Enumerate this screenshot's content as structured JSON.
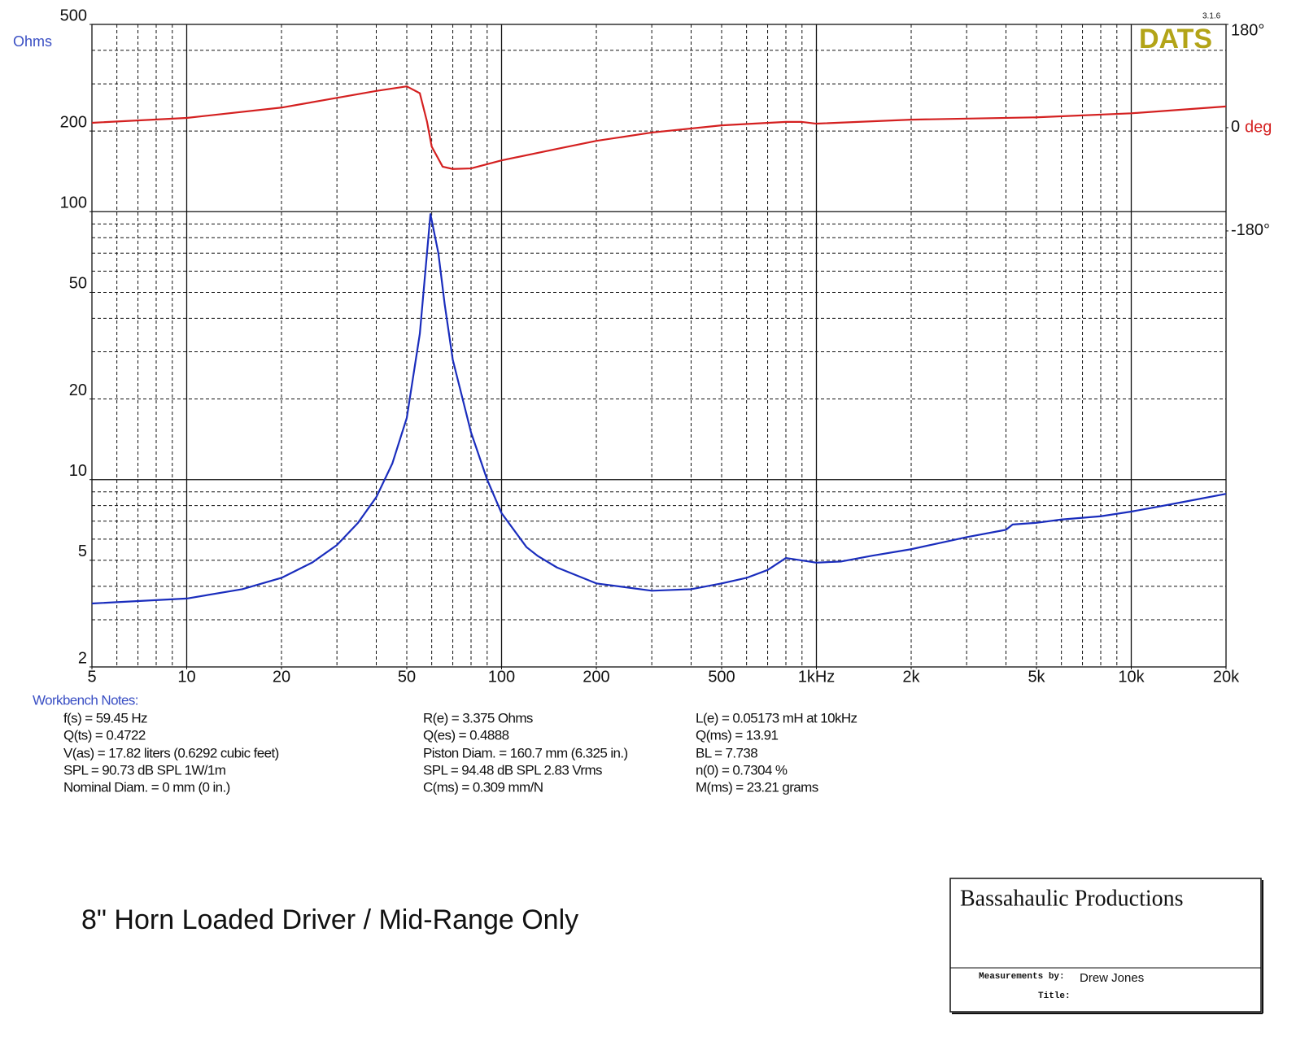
{
  "chart_data": {
    "type": "line",
    "y_label": "Ohms",
    "y2_label": "deg",
    "logo": "DATS",
    "version": "3.1.6",
    "xlog": true,
    "ylog": true,
    "xlim": [
      5,
      20000
    ],
    "ylim": [
      2,
      500
    ],
    "y2lim": [
      -940,
      180
    ],
    "xticks": [
      5,
      10,
      20,
      50,
      100,
      200,
      500,
      {
        "value": 1000,
        "label": "1kHz"
      },
      {
        "value": 2000,
        "label": "2k"
      },
      {
        "value": 5000,
        "label": "5k"
      },
      {
        "value": 10000,
        "label": "10k"
      },
      {
        "value": 20000,
        "label": "20k"
      }
    ],
    "yticks": [
      2,
      5,
      10,
      20,
      50,
      100,
      200,
      500
    ],
    "y2ticks": [
      {
        "value": 180,
        "label": "180°"
      },
      0,
      {
        "value": -180,
        "label": "-180°"
      }
    ],
    "x_grid": [
      5,
      6,
      7,
      8,
      9,
      10,
      20,
      30,
      40,
      50,
      60,
      70,
      80,
      90,
      100,
      200,
      300,
      400,
      500,
      600,
      700,
      800,
      900,
      1000,
      2000,
      3000,
      4000,
      5000,
      6000,
      7000,
      8000,
      9000,
      10000,
      20000
    ],
    "y_grid": [
      2,
      3,
      4,
      5,
      6,
      7,
      8,
      9,
      10,
      20,
      30,
      40,
      50,
      60,
      70,
      80,
      90,
      100,
      200,
      300,
      400,
      500
    ],
    "grid": true,
    "series": [
      {
        "color": "#1a2dbd",
        "x": [
          5,
          10,
          15,
          20,
          25,
          30,
          35,
          40,
          45,
          50,
          55,
          59.45,
          63,
          66,
          70,
          80,
          90,
          100,
          120,
          130,
          150,
          200,
          300,
          400,
          500,
          600,
          700,
          800,
          1000,
          1200,
          1500,
          2000,
          3000,
          4000,
          4200,
          5000,
          6000,
          8000,
          10000,
          12000,
          15000,
          20000
        ],
        "values": [
          3.45,
          3.6,
          3.9,
          4.3,
          4.9,
          5.7,
          6.9,
          8.6,
          11.5,
          17,
          35,
          98,
          70,
          45,
          28,
          15,
          10,
          7.5,
          5.6,
          5.2,
          4.7,
          4.1,
          3.85,
          3.9,
          4.1,
          4.3,
          4.6,
          5.1,
          4.9,
          4.95,
          5.2,
          5.5,
          6.1,
          6.5,
          6.8,
          6.9,
          7.1,
          7.3,
          7.6,
          7.9,
          8.3,
          8.85
        ]
      },
      {
        "color": "#d42020",
        "axis": "y2",
        "x": [
          5,
          10,
          20,
          30,
          40,
          50,
          55,
          58,
          60,
          65,
          70,
          80,
          100,
          150,
          200,
          300,
          500,
          800,
          900,
          1000,
          2000,
          5000,
          10000,
          20000
        ],
        "values": [
          8.5,
          17,
          35,
          52,
          64,
          72,
          60,
          10,
          -33,
          -68,
          -72,
          -71,
          -57,
          -37,
          -23,
          -8.5,
          4,
          10,
          10,
          7,
          14,
          18,
          25,
          37
        ]
      }
    ]
  },
  "notes": {
    "heading": "Workbench Notes:",
    "columns": [
      [
        "f(s) = 59.45 Hz",
        "Q(ts) = 0.4722",
        "V(as) = 17.82 liters  (0.6292 cubic feet)",
        "SPL = 90.73 dB SPL 1W/1m",
        "Nominal Diam. = 0 mm (0 in.)"
      ],
      [
        "R(e) = 3.375 Ohms",
        "Q(es) = 0.4888",
        "Piston Diam. = 160.7 mm (6.325 in.)",
        "SPL = 94.48 dB SPL 2.83 Vrms",
        "C(ms) = 0.309 mm/N"
      ],
      [
        "L(e) = 0.05173 mH at 10kHz",
        "Q(ms) = 13.91",
        "BL = 7.738",
        "n(0) = 0.7304 %",
        "M(ms) = 23.21 grams"
      ]
    ]
  },
  "caption": "8\" Horn Loaded Driver / Mid-Range Only",
  "title_block": {
    "company": "Bassahaulic Productions",
    "measured_label": "Measurements by:",
    "measured_by": "Drew Jones",
    "title_label": "Title:"
  }
}
